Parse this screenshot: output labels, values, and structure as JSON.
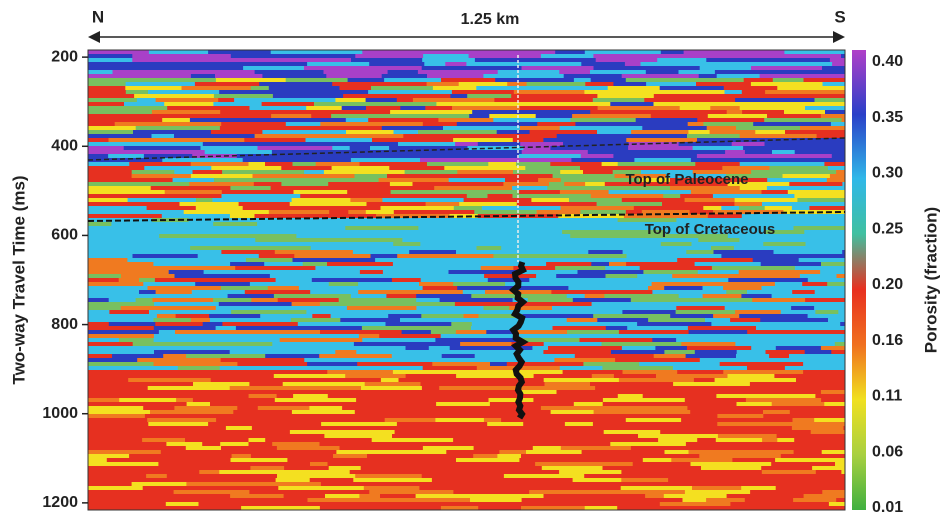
{
  "chart_data": {
    "type": "section",
    "x_start_label": "N",
    "x_end_label": "S",
    "x_span_label": "1.25 km",
    "ylabel": "Two-way Travel Time (ms)",
    "ylim": [
      184,
      1216
    ],
    "yticks": [
      200,
      400,
      600,
      800,
      1000,
      1200
    ],
    "colorbar_label": "Porosity (fraction)",
    "colorbar_labels": [
      "0.40",
      "0.35",
      "0.30",
      "0.25",
      "0.20",
      "0.16",
      "0.11",
      "0.06",
      "0.01"
    ],
    "annotations": [
      "Top of Paleocene",
      "Top of Cretaceous"
    ]
  }
}
